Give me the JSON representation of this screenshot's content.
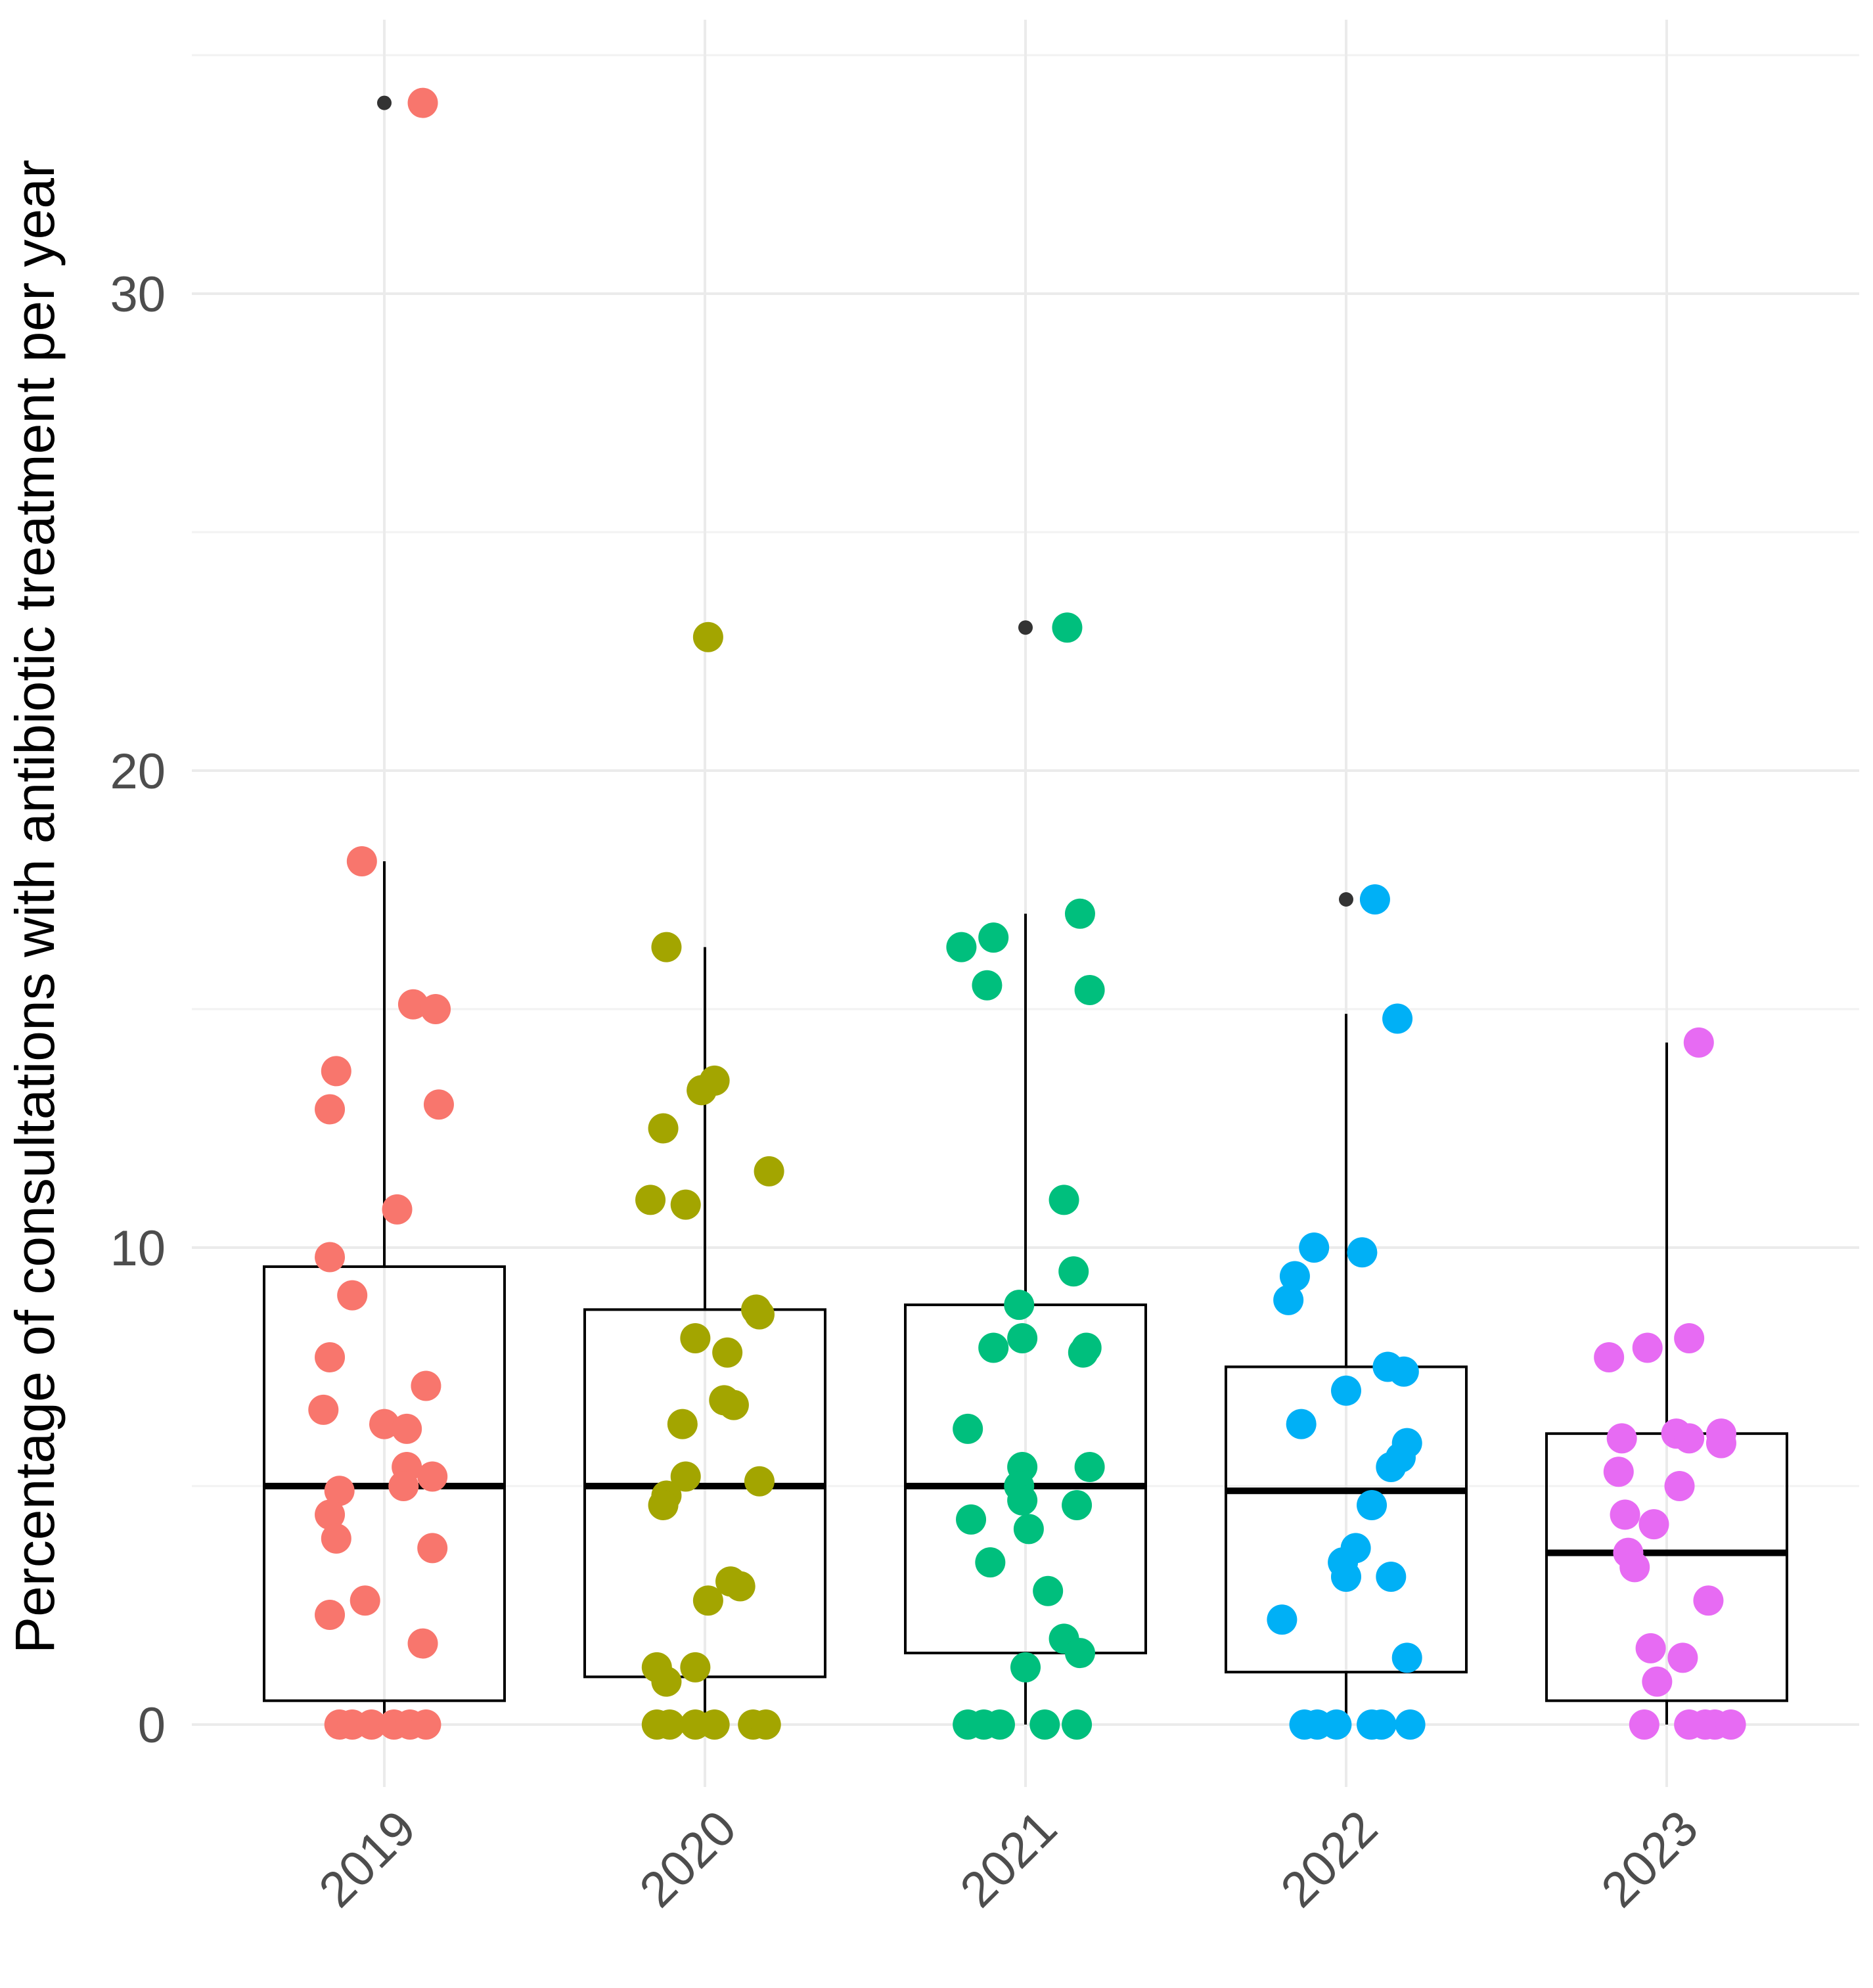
{
  "chart_data": {
    "type": "boxplot-jitter",
    "title": "",
    "xlabel": "",
    "ylabel": "Percentage of consultations with antibiotic treatment per year",
    "ylim": [
      -1.5,
      35
    ],
    "yticks": [
      0,
      10,
      20,
      30
    ],
    "ytick_labels": [
      "0",
      "10",
      "20",
      "30"
    ],
    "grid": true,
    "legend": "none",
    "categories": [
      "2019",
      "2020",
      "2021",
      "2022",
      "2023"
    ],
    "colors": [
      "#F8766D",
      "#A3A500",
      "#00BF7D",
      "#00B0F6",
      "#E76BF3"
    ],
    "boxes": [
      {
        "q1": 0.5,
        "median": 5.0,
        "q3": 9.6,
        "whisker_low": 0,
        "whisker_high": 18.1,
        "outliers": [
          34
        ]
      },
      {
        "q1": 1.0,
        "median": 5.0,
        "q3": 8.7,
        "whisker_low": 0,
        "whisker_high": 16.3,
        "outliers": []
      },
      {
        "q1": 1.5,
        "median": 5.0,
        "q3": 8.8,
        "whisker_low": 0,
        "whisker_high": 17.0,
        "outliers": [
          23.0
        ]
      },
      {
        "q1": 1.1,
        "median": 4.9,
        "q3": 7.5,
        "whisker_low": 0,
        "whisker_high": 14.9,
        "outliers": [
          17.3
        ]
      },
      {
        "q1": 0.5,
        "median": 3.6,
        "q3": 6.1,
        "whisker_low": 0,
        "whisker_high": 14.3,
        "outliers": []
      }
    ],
    "points": [
      [
        {
          "dx": 0.12,
          "y": 34
        },
        {
          "dx": -0.07,
          "y": 18.1
        },
        {
          "dx": 0.09,
          "y": 15.1
        },
        {
          "dx": 0.16,
          "y": 15.0
        },
        {
          "dx": -0.15,
          "y": 13.7
        },
        {
          "dx": -0.17,
          "y": 12.9
        },
        {
          "dx": 0.17,
          "y": 13.0
        },
        {
          "dx": 0.04,
          "y": 10.8
        },
        {
          "dx": -0.17,
          "y": 9.8
        },
        {
          "dx": -0.1,
          "y": 9.0
        },
        {
          "dx": -0.17,
          "y": 7.7
        },
        {
          "dx": 0.13,
          "y": 7.1
        },
        {
          "dx": -0.19,
          "y": 6.6
        },
        {
          "dx": 0.0,
          "y": 6.3
        },
        {
          "dx": 0.07,
          "y": 6.2
        },
        {
          "dx": 0.07,
          "y": 5.4
        },
        {
          "dx": 0.15,
          "y": 5.2
        },
        {
          "dx": 0.06,
          "y": 5.0
        },
        {
          "dx": -0.14,
          "y": 4.9
        },
        {
          "dx": -0.17,
          "y": 4.4
        },
        {
          "dx": -0.15,
          "y": 3.9
        },
        {
          "dx": 0.15,
          "y": 3.7
        },
        {
          "dx": -0.06,
          "y": 2.6
        },
        {
          "dx": -0.17,
          "y": 2.3
        },
        {
          "dx": 0.12,
          "y": 1.7
        },
        {
          "dx": -0.14,
          "y": 0
        },
        {
          "dx": -0.1,
          "y": 0
        },
        {
          "dx": -0.04,
          "y": 0
        },
        {
          "dx": 0.03,
          "y": 0
        },
        {
          "dx": 0.08,
          "y": 0
        },
        {
          "dx": 0.13,
          "y": 0
        }
      ],
      [
        {
          "dx": 0.01,
          "y": 22.8
        },
        {
          "dx": -0.12,
          "y": 16.3
        },
        {
          "dx": 0.03,
          "y": 13.5
        },
        {
          "dx": -0.01,
          "y": 13.3
        },
        {
          "dx": -0.13,
          "y": 12.5
        },
        {
          "dx": 0.2,
          "y": 11.6
        },
        {
          "dx": -0.17,
          "y": 11.0
        },
        {
          "dx": -0.06,
          "y": 10.9
        },
        {
          "dx": 0.16,
          "y": 8.7
        },
        {
          "dx": 0.17,
          "y": 8.6
        },
        {
          "dx": -0.03,
          "y": 8.1
        },
        {
          "dx": 0.07,
          "y": 7.8
        },
        {
          "dx": 0.06,
          "y": 6.8
        },
        {
          "dx": 0.09,
          "y": 6.7
        },
        {
          "dx": -0.07,
          "y": 6.3
        },
        {
          "dx": -0.06,
          "y": 5.2
        },
        {
          "dx": 0.17,
          "y": 5.1
        },
        {
          "dx": -0.12,
          "y": 4.8
        },
        {
          "dx": -0.13,
          "y": 4.6
        },
        {
          "dx": 0.08,
          "y": 3.0
        },
        {
          "dx": 0.11,
          "y": 2.9
        },
        {
          "dx": 0.01,
          "y": 2.6
        },
        {
          "dx": -0.15,
          "y": 1.2
        },
        {
          "dx": -0.03,
          "y": 1.2
        },
        {
          "dx": -0.12,
          "y": 0.9
        },
        {
          "dx": -0.15,
          "y": 0
        },
        {
          "dx": -0.11,
          "y": 0
        },
        {
          "dx": -0.03,
          "y": 0
        },
        {
          "dx": 0.03,
          "y": 0
        },
        {
          "dx": 0.15,
          "y": 0
        },
        {
          "dx": 0.19,
          "y": 0
        }
      ],
      [
        {
          "dx": 0.13,
          "y": 23.0
        },
        {
          "dx": 0.17,
          "y": 17.0
        },
        {
          "dx": -0.1,
          "y": 16.5
        },
        {
          "dx": -0.2,
          "y": 16.3
        },
        {
          "dx": -0.12,
          "y": 15.5
        },
        {
          "dx": 0.2,
          "y": 15.4
        },
        {
          "dx": 0.12,
          "y": 11.0
        },
        {
          "dx": 0.15,
          "y": 9.5
        },
        {
          "dx": -0.02,
          "y": 8.8
        },
        {
          "dx": -0.01,
          "y": 8.1
        },
        {
          "dx": -0.1,
          "y": 7.9
        },
        {
          "dx": 0.19,
          "y": 7.9
        },
        {
          "dx": 0.18,
          "y": 7.8
        },
        {
          "dx": -0.18,
          "y": 6.2
        },
        {
          "dx": -0.01,
          "y": 5.4
        },
        {
          "dx": 0.2,
          "y": 5.4
        },
        {
          "dx": -0.02,
          "y": 5.0
        },
        {
          "dx": -0.01,
          "y": 4.7
        },
        {
          "dx": 0.16,
          "y": 4.6
        },
        {
          "dx": -0.17,
          "y": 4.3
        },
        {
          "dx": 0.01,
          "y": 4.1
        },
        {
          "dx": -0.11,
          "y": 3.4
        },
        {
          "dx": 0.07,
          "y": 2.8
        },
        {
          "dx": 0.12,
          "y": 1.8
        },
        {
          "dx": 0.17,
          "y": 1.5
        },
        {
          "dx": 0.0,
          "y": 1.2
        },
        {
          "dx": -0.18,
          "y": 0
        },
        {
          "dx": -0.13,
          "y": 0
        },
        {
          "dx": -0.08,
          "y": 0
        },
        {
          "dx": 0.06,
          "y": 0
        },
        {
          "dx": 0.16,
          "y": 0
        }
      ],
      [
        {
          "dx": 0.09,
          "y": 17.3
        },
        {
          "dx": 0.16,
          "y": 14.8
        },
        {
          "dx": -0.1,
          "y": 10.0
        },
        {
          "dx": 0.05,
          "y": 9.9
        },
        {
          "dx": -0.16,
          "y": 9.4
        },
        {
          "dx": -0.18,
          "y": 8.9
        },
        {
          "dx": 0.13,
          "y": 7.5
        },
        {
          "dx": 0.18,
          "y": 7.4
        },
        {
          "dx": 0.0,
          "y": 7.0
        },
        {
          "dx": -0.14,
          "y": 6.3
        },
        {
          "dx": 0.19,
          "y": 5.9
        },
        {
          "dx": 0.17,
          "y": 5.6
        },
        {
          "dx": 0.14,
          "y": 5.4
        },
        {
          "dx": 0.08,
          "y": 4.6
        },
        {
          "dx": 0.03,
          "y": 3.7
        },
        {
          "dx": -0.01,
          "y": 3.4
        },
        {
          "dx": 0.0,
          "y": 3.1
        },
        {
          "dx": 0.14,
          "y": 3.1
        },
        {
          "dx": -0.2,
          "y": 2.2
        },
        {
          "dx": 0.19,
          "y": 1.4
        },
        {
          "dx": -0.13,
          "y": 0
        },
        {
          "dx": -0.09,
          "y": 0
        },
        {
          "dx": -0.03,
          "y": 0
        },
        {
          "dx": 0.08,
          "y": 0
        },
        {
          "dx": 0.11,
          "y": 0
        },
        {
          "dx": 0.2,
          "y": 0
        }
      ],
      [
        {
          "dx": 0.1,
          "y": 14.3
        },
        {
          "dx": 0.07,
          "y": 8.1
        },
        {
          "dx": -0.06,
          "y": 7.9
        },
        {
          "dx": -0.18,
          "y": 7.7
        },
        {
          "dx": 0.03,
          "y": 6.1
        },
        {
          "dx": 0.07,
          "y": 6.0
        },
        {
          "dx": -0.14,
          "y": 6.0
        },
        {
          "dx": 0.17,
          "y": 6.1
        },
        {
          "dx": 0.17,
          "y": 5.9
        },
        {
          "dx": -0.15,
          "y": 5.3
        },
        {
          "dx": 0.04,
          "y": 5.0
        },
        {
          "dx": -0.13,
          "y": 4.4
        },
        {
          "dx": -0.04,
          "y": 4.2
        },
        {
          "dx": -0.12,
          "y": 3.6
        },
        {
          "dx": -0.1,
          "y": 3.3
        },
        {
          "dx": 0.13,
          "y": 2.6
        },
        {
          "dx": -0.05,
          "y": 1.6
        },
        {
          "dx": 0.05,
          "y": 1.4
        },
        {
          "dx": -0.03,
          "y": 0.9
        },
        {
          "dx": -0.07,
          "y": 0
        },
        {
          "dx": 0.07,
          "y": 0
        },
        {
          "dx": 0.12,
          "y": 0
        },
        {
          "dx": 0.15,
          "y": 0
        },
        {
          "dx": 0.2,
          "y": 0
        }
      ]
    ]
  }
}
